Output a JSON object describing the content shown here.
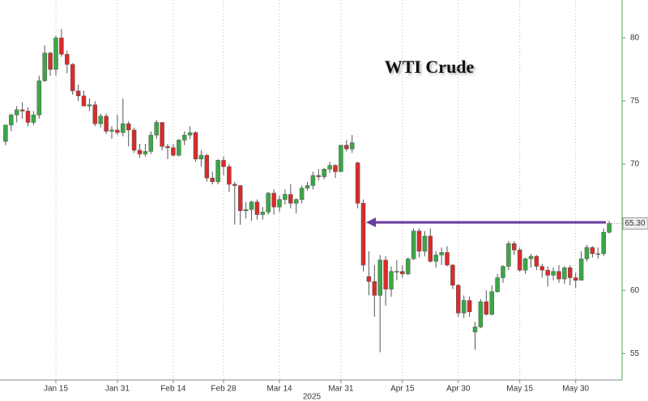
{
  "chart_data": {
    "type": "candlestick",
    "title": "WTI Crude",
    "x_sublabel": "2025",
    "categories": [
      null,
      null,
      null,
      null,
      null,
      null,
      null,
      null,
      null,
      "Jan 15",
      null,
      null,
      null,
      null,
      null,
      null,
      null,
      null,
      null,
      null,
      "Jan 31",
      null,
      null,
      null,
      null,
      null,
      null,
      null,
      null,
      null,
      "Feb 14",
      null,
      null,
      null,
      null,
      null,
      null,
      null,
      null,
      "Feb 28",
      null,
      null,
      null,
      null,
      null,
      null,
      null,
      null,
      null,
      "Mar 14",
      null,
      null,
      null,
      null,
      null,
      null,
      null,
      null,
      null,
      null,
      "Mar 31",
      null,
      null,
      null,
      null,
      null,
      null,
      null,
      null,
      null,
      null,
      "Apr 15",
      null,
      null,
      null,
      null,
      null,
      null,
      null,
      null,
      null,
      "Apr 30",
      null,
      null,
      null,
      null,
      null,
      null,
      null,
      null,
      null,
      null,
      "May 15",
      null,
      null,
      null,
      null,
      null,
      null,
      null,
      null,
      null,
      "May 30",
      null,
      null,
      null,
      null,
      null,
      null
    ],
    "open": [
      71.8,
      73.1,
      73.9,
      74.3,
      74.2,
      73.3,
      73.9,
      76.6,
      78.8,
      77.5,
      80.0,
      78.7,
      77.9,
      75.8,
      75.4,
      74.6,
      74.7,
      73.2,
      73.8,
      72.6,
      72.7,
      72.5,
      73.2,
      72.7,
      71.1,
      70.8,
      71.0,
      72.3,
      73.3,
      71.4,
      71.3,
      70.7,
      71.9,
      72.3,
      72.5,
      70.4,
      70.7,
      68.9,
      68.6,
      70.3,
      69.8,
      68.4,
      68.3,
      66.3,
      66.4,
      67.0,
      66.0,
      66.2,
      67.7,
      66.6,
      67.2,
      67.6,
      66.9,
      67.2,
      68.1,
      68.3,
      69.1,
      69.0,
      69.6,
      69.9,
      69.4,
      71.5,
      71.2,
      70.1,
      66.9,
      61.1,
      60.7,
      59.6,
      62.4,
      60.1,
      61.5,
      61.5,
      61.3,
      62.5,
      64.7,
      63.1,
      64.3,
      62.3,
      62.8,
      63.0,
      62.0,
      60.4,
      58.2,
      59.2,
      56.7,
      57.1,
      59.1,
      58.1,
      59.9,
      61.0,
      61.9,
      63.7,
      63.2,
      61.6,
      62.5,
      62.7,
      61.9,
      61.6,
      61.2,
      61.5,
      60.9,
      61.8,
      61.0,
      60.8,
      62.5,
      63.4,
      62.9,
      62.9,
      64.6
    ],
    "high": [
      73.1,
      74.0,
      74.6,
      74.9,
      74.5,
      74.2,
      77.0,
      79.4,
      78.9,
      80.2,
      80.7,
      79.0,
      78.0,
      76.3,
      75.8,
      75.2,
      75.0,
      74.0,
      74.0,
      73.0,
      73.9,
      75.2,
      73.4,
      72.9,
      71.6,
      71.6,
      72.6,
      73.5,
      73.3,
      71.6,
      71.6,
      72.0,
      72.6,
      73.0,
      72.6,
      71.1,
      70.8,
      69.4,
      70.4,
      70.6,
      70.0,
      68.6,
      68.3,
      67.0,
      67.1,
      67.2,
      66.6,
      67.8,
      68.0,
      67.5,
      68.0,
      68.4,
      67.3,
      68.3,
      68.6,
      69.4,
      69.6,
      69.7,
      70.2,
      70.0,
      71.5,
      71.9,
      72.3,
      70.2,
      67.2,
      63.1,
      62.0,
      62.8,
      62.7,
      61.9,
      62.4,
      62.0,
      62.6,
      64.9,
      64.9,
      64.7,
      64.9,
      63.1,
      63.4,
      63.5,
      62.1,
      60.5,
      59.6,
      59.5,
      57.5,
      59.3,
      60.0,
      60.4,
      61.3,
      62.0,
      63.9,
      63.9,
      63.4,
      62.6,
      62.9,
      62.8,
      62.1,
      61.9,
      61.8,
      62.0,
      61.9,
      62.0,
      61.4,
      63.1,
      63.6,
      63.5,
      63.4,
      64.9,
      65.5
    ],
    "low": [
      71.5,
      72.6,
      73.3,
      73.6,
      73.0,
      73.1,
      73.6,
      76.5,
      77.0,
      77.0,
      78.5,
      77.2,
      75.5,
      75.0,
      74.6,
      74.2,
      73.0,
      72.9,
      72.4,
      72.0,
      72.3,
      72.2,
      71.4,
      70.9,
      70.5,
      70.6,
      70.8,
      72.0,
      71.1,
      70.4,
      70.6,
      70.6,
      71.5,
      72.0,
      70.2,
      69.8,
      68.6,
      68.4,
      68.4,
      69.1,
      67.8,
      65.2,
      65.2,
      65.7,
      65.5,
      65.6,
      65.6,
      66.0,
      66.0,
      66.2,
      66.8,
      66.5,
      66.1,
      66.9,
      67.9,
      68.0,
      68.7,
      68.8,
      69.3,
      68.9,
      69.4,
      71.0,
      70.9,
      66.5,
      61.5,
      59.6,
      57.9,
      55.1,
      58.8,
      59.5,
      60.8,
      61.0,
      61.2,
      62.4,
      62.6,
      62.7,
      62.2,
      61.8,
      62.0,
      61.9,
      60.1,
      57.9,
      57.8,
      57.9,
      55.3,
      57.0,
      58.0,
      58.0,
      59.8,
      60.6,
      61.6,
      62.8,
      61.5,
      61.3,
      61.8,
      61.6,
      61.0,
      60.3,
      60.8,
      60.6,
      60.5,
      60.4,
      60.2,
      60.8,
      62.3,
      62.6,
      62.5,
      62.7,
      64.5
    ],
    "close": [
      73.1,
      73.9,
      74.3,
      74.2,
      73.3,
      73.9,
      76.6,
      78.8,
      77.5,
      80.0,
      78.7,
      77.9,
      75.8,
      75.4,
      74.6,
      74.7,
      73.2,
      73.8,
      72.6,
      72.7,
      72.5,
      73.2,
      72.7,
      71.1,
      70.8,
      71.0,
      72.3,
      73.3,
      71.4,
      71.3,
      70.7,
      71.9,
      72.3,
      72.5,
      70.4,
      70.7,
      68.9,
      68.6,
      70.3,
      69.8,
      68.4,
      68.3,
      66.3,
      66.4,
      67.0,
      66.0,
      66.2,
      67.7,
      66.6,
      67.2,
      67.6,
      66.9,
      67.2,
      68.1,
      68.3,
      69.1,
      69.0,
      69.6,
      69.9,
      69.4,
      71.5,
      71.2,
      71.7,
      66.9,
      62.0,
      60.7,
      59.6,
      62.4,
      60.1,
      61.5,
      61.5,
      61.3,
      62.5,
      64.7,
      63.1,
      64.3,
      62.3,
      62.8,
      63.0,
      62.0,
      60.4,
      58.2,
      59.2,
      58.3,
      57.1,
      59.1,
      58.1,
      59.9,
      61.0,
      61.9,
      63.7,
      63.2,
      61.6,
      62.5,
      62.7,
      61.9,
      61.6,
      61.2,
      61.5,
      60.9,
      61.8,
      61.0,
      60.8,
      62.5,
      63.4,
      62.9,
      62.9,
      64.6,
      65.3
    ],
    "up_color": "#3aa845",
    "down_color": "#d92b2b",
    "axis_color": "#4caf50",
    "ylim": [
      52.9,
      83.0
    ],
    "yticks": [
      55,
      60,
      65,
      70,
      75,
      80
    ],
    "grid": "x",
    "price_tag": {
      "value": 65.3,
      "label": "65.30"
    }
  }
}
